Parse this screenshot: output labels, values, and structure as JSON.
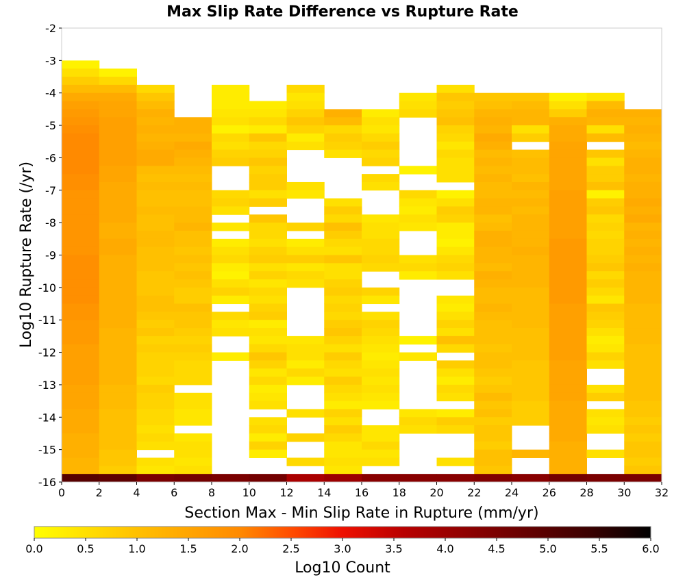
{
  "chart_data": {
    "type": "heatmap",
    "title": "Max Slip Rate Difference vs Rupture Rate",
    "xlabel": "Section Max - Min Slip Rate in Rupture (mm/yr)",
    "ylabel": "Log10 Rupture Rate (/yr)",
    "xlim": [
      0,
      32
    ],
    "ylim": [
      -16,
      -2
    ],
    "x_ticks": [
      "0",
      "2",
      "4",
      "6",
      "8",
      "10",
      "12",
      "14",
      "16",
      "18",
      "20",
      "22",
      "24",
      "26",
      "28",
      "30",
      "32"
    ],
    "y_ticks": [
      "-2",
      "-3",
      "-4",
      "-5",
      "-6",
      "-7",
      "-8",
      "-9",
      "-10",
      "-11",
      "-12",
      "-13",
      "-14",
      "-15",
      "-16"
    ],
    "x_bin_width": 2,
    "y_bin_height": 0.25,
    "colorbar": {
      "label": "Log10 Count",
      "range": [
        0.0,
        6.0
      ],
      "ticks": [
        "0.0",
        "0.5",
        "1.0",
        "1.5",
        "2.0",
        "2.5",
        "3.0",
        "3.5",
        "4.0",
        "4.5",
        "5.0",
        "5.5",
        "6.0"
      ]
    },
    "columns": [
      {
        "x": 0,
        "top": -3.0,
        "vals": [
          0.2,
          0.5,
          0.8,
          1.1,
          1.4,
          1.6,
          1.7,
          1.8,
          1.9,
          2.0,
          2.0,
          2.0,
          2.0,
          2.0,
          1.9,
          1.9,
          1.8,
          1.8,
          1.8,
          1.8,
          1.8,
          1.8,
          1.8,
          1.8,
          1.9,
          1.9,
          1.9,
          1.9,
          1.9,
          1.9,
          1.8,
          1.8,
          1.7,
          1.7,
          1.7,
          1.6,
          1.6,
          1.6,
          1.6,
          1.6,
          1.5,
          1.5,
          1.5,
          1.4,
          1.4,
          1.4,
          1.3,
          1.3,
          1.3,
          1.2,
          1.2,
          1.2
        ],
        "bottom": 5.0
      },
      {
        "x": 2,
        "top": -3.25,
        "vals": [
          0.2,
          0.6,
          1.1,
          1.4,
          1.5,
          1.5,
          1.6,
          1.6,
          1.6,
          1.6,
          1.6,
          1.6,
          1.5,
          1.5,
          1.4,
          1.4,
          1.4,
          1.4,
          1.4,
          1.3,
          1.3,
          1.4,
          1.4,
          1.3,
          1.3,
          1.3,
          1.3,
          1.3,
          1.3,
          1.3,
          1.3,
          1.3,
          1.2,
          1.2,
          1.2,
          1.2,
          1.2,
          1.2,
          1.2,
          1.1,
          1.1,
          1.1,
          1.0,
          1.0,
          1.0,
          1.0,
          1.0,
          0.9,
          0.9,
          0.8,
          0.8
        ],
        "bottom": 4.9
      },
      {
        "x": 4,
        "top": -3.75,
        "vals": [
          0.6,
          0.9,
          1.1,
          1.3,
          1.2,
          1.3,
          1.2,
          1.3,
          1.4,
          1.4,
          1.1,
          1.0,
          1.1,
          1.0,
          1.0,
          1.1,
          1.0,
          1.0,
          1.1,
          1.1,
          1.0,
          1.0,
          1.0,
          0.9,
          0.9,
          0.9,
          1.0,
          1.0,
          0.9,
          0.8,
          0.9,
          0.7,
          0.8,
          0.7,
          0.7,
          0.7,
          0.6,
          0.8,
          0.7,
          0.7,
          0.6,
          0.6,
          0.5,
          0.6,
          0.5,
          null,
          0.5,
          0.4
        ],
        "bottom": 4.5
      },
      {
        "x": 6,
        "top": -4.75,
        "vals": [
          1.3,
          1.3,
          1.2,
          1.4,
          1.3,
          1.2,
          1.1,
          1.0,
          1.1,
          1.0,
          1.0,
          1.1,
          1.1,
          1.2,
          1.0,
          1.0,
          0.9,
          1.0,
          0.9,
          1.0,
          0.9,
          0.8,
          0.8,
          1.0,
          0.9,
          0.9,
          0.8,
          0.7,
          0.8,
          0.7,
          0.6,
          0.6,
          0.6,
          null,
          0.5,
          0.5,
          0.4,
          0.4,
          null,
          0.4,
          0.5,
          0.5,
          0.4,
          0.5,
          0.4
        ],
        "bottom": 4.6
      },
      {
        "x": 8,
        "top": -3.75,
        "vals": [
          0.3,
          0.3,
          0.3,
          0.4,
          0.5,
          0.2,
          0.6,
          0.5,
          0.7,
          0.8,
          null,
          null,
          null,
          0.6,
          0.7,
          0.5,
          null,
          0.4,
          null,
          0.3,
          0.5,
          0.6,
          0.3,
          0.2,
          0.5,
          0.7,
          0.3,
          null,
          0.6,
          0.4,
          0.5,
          null,
          null,
          0.3,
          null,
          null,
          null,
          null,
          null,
          null,
          null,
          null,
          null,
          null,
          null,
          null,
          null,
          null
        ],
        "bottom": 4.5
      },
      {
        "x": 10,
        "top": -4.25,
        "vals": [
          0.3,
          0.4,
          0.6,
          0.3,
          0.9,
          0.6,
          0.7,
          0.9,
          0.7,
          0.8,
          0.8,
          0.5,
          0.8,
          null,
          0.9,
          0.6,
          0.6,
          0.5,
          0.7,
          0.8,
          0.5,
          0.7,
          0.4,
          0.6,
          0.5,
          0.7,
          0.8,
          0.3,
          0.5,
          0.4,
          0.6,
          0.9,
          0.7,
          0.4,
          0.6,
          0.3,
          0.4,
          0.5,
          null,
          0.5,
          0.6,
          0.3,
          0.7,
          0.3,
          null,
          null,
          0.5,
          0.5,
          null
        ],
        "bottom": 4.6
      },
      {
        "x": 12,
        "top": -3.75,
        "vals": [
          0.6,
          0.4,
          0.5,
          0.7,
          0.9,
          0.7,
          0.3,
          0.5,
          null,
          null,
          null,
          null,
          0.5,
          0.4,
          null,
          null,
          null,
          0.7,
          null,
          0.3,
          0.5,
          0.8,
          0.4,
          0.6,
          0.5,
          null,
          null,
          null,
          null,
          null,
          null,
          0.4,
          0.5,
          0.5,
          0.3,
          0.6,
          0.3,
          null,
          null,
          null,
          0.5,
          null,
          null,
          0.7,
          null,
          null,
          0.6,
          null
        ],
        "bottom": 3.8
      },
      {
        "x": 14,
        "top": -4.5,
        "vals": [
          1.3,
          1.1,
          0.6,
          0.8,
          0.7,
          0.5,
          null,
          null,
          null,
          null,
          null,
          0.5,
          0.8,
          0.6,
          1.0,
          0.8,
          0.6,
          0.5,
          0.9,
          0.5,
          0.5,
          0.7,
          0.8,
          0.6,
          0.7,
          0.6,
          0.8,
          0.9,
          0.7,
          0.5,
          0.8,
          0.6,
          0.5,
          0.8,
          0.6,
          0.5,
          0.3,
          0.7,
          0.5,
          0.8,
          0.6,
          0.4,
          0.4,
          0.5,
          0.4
        ],
        "bottom": 4.0
      },
      {
        "x": 16,
        "top": -4.5,
        "vals": [
          0.3,
          0.5,
          0.4,
          0.6,
          0.8,
          0.6,
          0.7,
          null,
          0.6,
          0.5,
          null,
          null,
          null,
          0.4,
          0.5,
          0.5,
          0.6,
          0.6,
          0.7,
          0.6,
          null,
          null,
          0.7,
          0.4,
          null,
          0.5,
          0.7,
          0.6,
          0.5,
          0.4,
          0.3,
          0.4,
          0.5,
          0.4,
          0.5,
          0.4,
          0.3,
          null,
          null,
          0.4,
          0.4,
          0.6,
          0.4,
          0.5,
          null
        ],
        "bottom": 4.3
      },
      {
        "x": 18,
        "top": -4.0,
        "vals": [
          0.4,
          0.5,
          0.6,
          null,
          null,
          null,
          null,
          null,
          null,
          0.2,
          null,
          null,
          0.6,
          0.4,
          0.3,
          0.5,
          0.4,
          null,
          null,
          null,
          0.5,
          0.6,
          0.3,
          null,
          null,
          null,
          null,
          null,
          null,
          null,
          0.2,
          null,
          0.4,
          null,
          null,
          null,
          null,
          null,
          null,
          0.4,
          0.6,
          0.5,
          null,
          null,
          null,
          null,
          null,
          null
        ],
        "bottom": 4.3
      },
      {
        "x": 20,
        "top": -3.75,
        "vals": [
          0.5,
          0.9,
          0.8,
          0.9,
          1.0,
          0.7,
          0.6,
          0.4,
          0.6,
          0.5,
          0.5,
          0.5,
          null,
          0.2,
          0.5,
          0.8,
          0.7,
          0.3,
          0.3,
          0.2,
          0.4,
          0.6,
          0.7,
          0.5,
          null,
          null,
          0.4,
          0.3,
          0.5,
          0.7,
          0.5,
          1.0,
          0.6,
          null,
          0.8,
          0.5,
          0.3,
          0.6,
          0.5,
          null,
          0.3,
          0.8,
          0.6,
          null,
          null,
          null,
          0.5,
          null
        ],
        "bottom": 4.3
      },
      {
        "x": 22,
        "top": -4.0,
        "vals": [
          0.9,
          1.0,
          1.2,
          1.3,
          1.2,
          1.4,
          1.3,
          1.1,
          1.2,
          1.1,
          1.2,
          1.1,
          1.1,
          1.2,
          1.2,
          1.0,
          1.1,
          1.3,
          1.3,
          1.2,
          1.2,
          1.1,
          1.3,
          1.2,
          1.1,
          1.1,
          1.2,
          1.1,
          1.0,
          1.0,
          1.0,
          0.9,
          1.0,
          1.0,
          0.9,
          0.8,
          0.9,
          1.1,
          0.9,
          1.0,
          0.8,
          0.9,
          0.9,
          0.8,
          1.0,
          1.0,
          0.9,
          0.8
        ],
        "bottom": 4.4
      },
      {
        "x": 24,
        "top": -4.0,
        "vals": [
          0.9,
          1.1,
          1.2,
          1.2,
          0.5,
          0.8,
          null,
          1.0,
          1.1,
          1.1,
          1.0,
          1.2,
          1.1,
          1.2,
          1.1,
          1.2,
          1.2,
          1.2,
          1.2,
          1.3,
          1.2,
          1.2,
          1.2,
          1.2,
          1.1,
          1.1,
          1.1,
          1.1,
          1.1,
          1.0,
          1.0,
          1.0,
          1.0,
          0.9,
          0.9,
          0.9,
          0.9,
          0.9,
          0.8,
          0.8,
          0.8,
          null,
          null,
          null,
          1.2
        ],
        "bottom": 4.3
      },
      {
        "x": 26,
        "top": -4.0,
        "vals": [
          0.2,
          0.5,
          0.8,
          1.3,
          1.4,
          1.4,
          1.5,
          1.5,
          1.5,
          1.5,
          1.5,
          1.5,
          1.6,
          1.6,
          1.6,
          1.6,
          1.6,
          1.6,
          1.7,
          1.7,
          1.7,
          1.7,
          1.7,
          1.7,
          1.7,
          1.7,
          1.6,
          1.6,
          1.6,
          1.6,
          1.6,
          1.6,
          1.6,
          1.5,
          1.5,
          1.5,
          1.5,
          1.5,
          1.4,
          1.4,
          1.4,
          1.4,
          1.4,
          1.3,
          1.3,
          1.3,
          1.3,
          1.2
        ],
        "bottom": 4.6
      },
      {
        "x": 28,
        "top": -4.0,
        "vals": [
          0.4,
          1.1,
          1.3,
          1.2,
          0.5,
          1.1,
          null,
          0.9,
          0.5,
          0.8,
          0.8,
          1.0,
          0.2,
          0.8,
          0.9,
          0.6,
          0.7,
          0.6,
          0.7,
          0.7,
          0.8,
          0.9,
          0.6,
          0.8,
          0.6,
          0.4,
          0.9,
          0.8,
          0.7,
          0.5,
          0.3,
          0.4,
          0.7,
          0.5,
          null,
          null,
          0.5,
          0.8,
          null,
          0.5,
          0.4,
          0.5,
          null,
          null,
          0.5,
          null,
          null
        ],
        "bottom": 4.5
      },
      {
        "x": 30,
        "top": -4.5,
        "vals": [
          1.3,
          1.2,
          1.3,
          1.2,
          1.1,
          1.2,
          1.3,
          1.3,
          1.2,
          1.3,
          1.3,
          1.4,
          1.3,
          1.4,
          1.2,
          1.3,
          1.2,
          1.3,
          1.2,
          1.3,
          1.2,
          1.2,
          1.2,
          1.2,
          1.1,
          1.1,
          1.1,
          1.1,
          1.1,
          1.0,
          1.0,
          1.0,
          1.0,
          1.0,
          1.0,
          1.0,
          0.9,
          0.9,
          0.8,
          0.9,
          0.8,
          0.9,
          0.9,
          0.8,
          0.9
        ],
        "bottom": 4.5
      }
    ]
  }
}
